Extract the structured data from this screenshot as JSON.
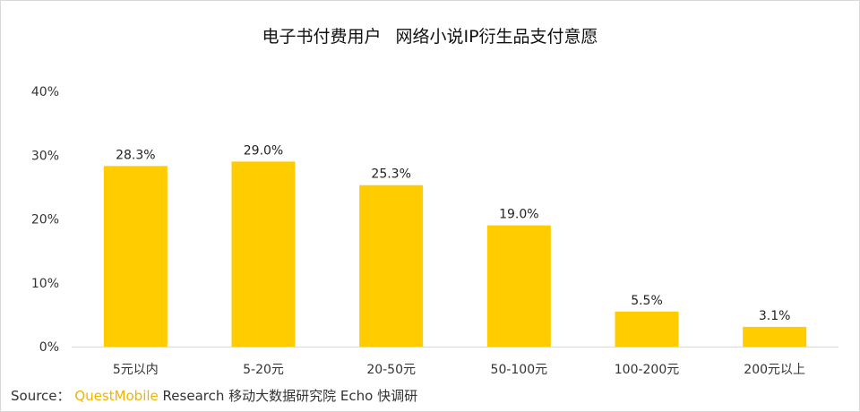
{
  "title": {
    "line1": "电子书付费用户",
    "line2": "网络小说IP衍生品支付意愿"
  },
  "source": {
    "label": "Source：",
    "brand": "QuestMobile",
    "text": "Research 移动大数据研究院 Echo 快调研"
  },
  "chart_data": {
    "type": "bar",
    "categories": [
      "5元以内",
      "5-20元",
      "20-50元",
      "50-100元",
      "100-200元",
      "200元以上"
    ],
    "values": [
      28.3,
      29.0,
      25.3,
      19.0,
      5.5,
      3.1
    ],
    "data_labels": [
      "28.3%",
      "29.0%",
      "25.3%",
      "19.0%",
      "5.5%",
      "3.1%"
    ],
    "yticks": [
      "0%",
      "10%",
      "20%",
      "30%",
      "40%"
    ],
    "ylim": [
      0,
      40
    ],
    "grid": false,
    "bar_color": "#FFCC00",
    "axis_color": "#D9D9D9"
  }
}
